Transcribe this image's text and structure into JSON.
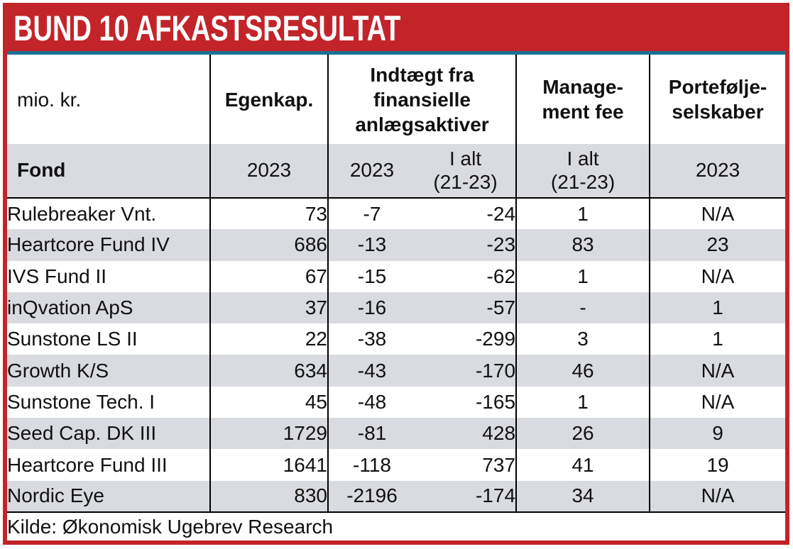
{
  "title": "BUND 10 AFKASTSRESULTAT",
  "colors": {
    "band_red": "#c2242a",
    "accent_teal": "#1d7090",
    "stripe_grey": "#dadbe0",
    "text": "#111111"
  },
  "header": {
    "unit_label": "mio. kr.",
    "group_egenkap": "Egenkap.",
    "group_indtaegt": [
      "Indtægt fra",
      "finansielle",
      "anlægsaktiver"
    ],
    "group_mgmt": [
      "Manage-",
      "ment fee"
    ],
    "group_portf": [
      "Portefølje-",
      "selskaber"
    ],
    "sub_fond": "Fond",
    "sub_egenkap": "2023",
    "sub_ind_2023": "2023",
    "sub_ind_ialt": [
      "I alt",
      "(21-23)"
    ],
    "sub_mgmt_ialt": [
      "I alt",
      "(21-23)"
    ],
    "sub_portf": "2023"
  },
  "source_note": "Kilde: Økonomisk Ugebrev Research",
  "chart_data": {
    "type": "table",
    "title": "BUND 10 AFKASTSRESULTAT",
    "unit": "mio. kr.",
    "columns": [
      "Fond",
      "Egenkap. 2023",
      "Indtægt fra finansielle anlægsaktiver 2023",
      "Indtægt fra finansielle anlægsaktiver I alt (21-23)",
      "Management fee I alt (21-23)",
      "Porteføljeselskaber 2023"
    ],
    "rows": [
      [
        "Rulebreaker Vnt.",
        73,
        -7,
        -24,
        1,
        "N/A"
      ],
      [
        "Heartcore Fund IV",
        686,
        -13,
        -23,
        83,
        23
      ],
      [
        "IVS Fund II",
        67,
        -15,
        -62,
        1,
        "N/A"
      ],
      [
        "inQvation ApS",
        37,
        -16,
        -57,
        "-",
        1
      ],
      [
        "Sunstone LS II",
        22,
        -38,
        -299,
        3,
        1
      ],
      [
        "Growth K/S",
        634,
        -43,
        -170,
        46,
        "N/A"
      ],
      [
        "Sunstone Tech. I",
        45,
        -48,
        -165,
        1,
        "N/A"
      ],
      [
        "Seed Cap. DK III",
        1729,
        -81,
        428,
        26,
        9
      ],
      [
        "Heartcore Fund III",
        1641,
        -118,
        737,
        41,
        19
      ],
      [
        "Nordic Eye",
        830,
        -2196,
        -174,
        34,
        "N/A"
      ]
    ],
    "source": "Kilde: Økonomisk Ugebrev Research"
  }
}
